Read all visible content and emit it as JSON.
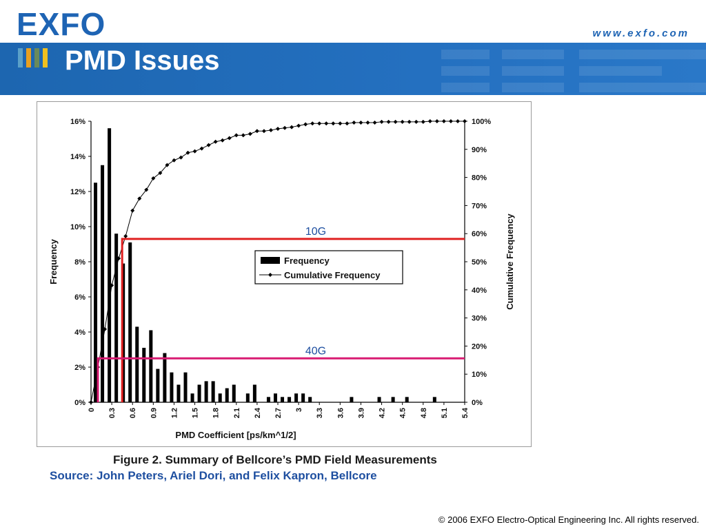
{
  "header": {
    "logo_text": "EXFO",
    "url": "www.exfo.com",
    "title": "PMD Issues",
    "title_bar_colors": [
      "#5aa0c8",
      "#e8a020",
      "#6a8a5a",
      "#f0c020"
    ],
    "brand_color": "#1e64b4"
  },
  "figure": {
    "caption": "Figure 2. Summary of Bellcore’s PMD Field Measurements",
    "source": "Source: John Peters, Ariel Dori, and Felix Kapron, Bellcore"
  },
  "footer": {
    "copyright": "© 2006 EXFO Electro-Optical Engineering Inc. All rights reserved."
  },
  "chart_data": {
    "type": "bar",
    "title": "",
    "xlabel": "PMD Coefficient [ps/km^1/2]",
    "ylabel": "Frequency",
    "y2label": "Cumulative Frequency",
    "ylim": [
      0,
      16
    ],
    "y2lim": [
      0,
      100
    ],
    "yticks": [
      "0%",
      "2%",
      "4%",
      "6%",
      "8%",
      "10%",
      "12%",
      "14%",
      "16%"
    ],
    "y2ticks": [
      "0%",
      "10%",
      "20%",
      "30%",
      "40%",
      "50%",
      "60%",
      "70%",
      "80%",
      "90%",
      "100%"
    ],
    "xticks": [
      "0",
      "0.3",
      "0.6",
      "0.9",
      "1.2",
      "1.5",
      "1.8",
      "2.1",
      "2.4",
      "2.7",
      "3",
      "3.3",
      "3.6",
      "3.9",
      "4.2",
      "4.5",
      "4.8",
      "5.1",
      "5.4"
    ],
    "x": [
      0.1,
      0.2,
      0.3,
      0.4,
      0.5,
      0.6,
      0.7,
      0.8,
      0.9,
      1.0,
      1.1,
      1.2,
      1.3,
      1.4,
      1.5,
      1.6,
      1.7,
      1.8,
      1.9,
      2.0,
      2.1,
      2.2,
      2.3,
      2.4,
      2.5,
      2.6,
      2.7,
      2.8,
      2.9,
      3.0,
      3.1,
      3.2,
      3.3,
      3.4,
      3.5,
      3.6,
      3.7,
      3.8,
      3.9,
      4.0,
      4.1,
      4.2,
      4.3,
      4.4,
      4.5,
      4.6,
      4.7,
      4.8,
      4.9,
      5.0,
      5.1,
      5.2,
      5.3,
      5.4
    ],
    "series": [
      {
        "name": "Frequency",
        "values": [
          12.5,
          13.5,
          15.6,
          9.6,
          7.9,
          9.1,
          4.3,
          3.1,
          4.1,
          1.9,
          2.8,
          1.7,
          1.0,
          1.7,
          0.5,
          1.0,
          1.2,
          1.2,
          0.5,
          0.8,
          1.0,
          0,
          0.5,
          1.0,
          0,
          0.3,
          0.5,
          0.3,
          0.3,
          0.5,
          0.5,
          0.3,
          0,
          0,
          0,
          0,
          0,
          0.3,
          0,
          0,
          0,
          0.3,
          0,
          0.3,
          0,
          0.3,
          0,
          0,
          0,
          0.3,
          0,
          0,
          0,
          0
        ]
      },
      {
        "name": "Cumulative Frequency",
        "x": [
          0,
          0.1,
          0.2,
          0.3,
          0.4,
          0.5,
          0.6,
          0.7,
          0.8,
          0.9,
          1.0,
          1.1,
          1.2,
          1.3,
          1.4,
          1.5,
          1.6,
          1.7,
          1.8,
          1.9,
          2.0,
          2.1,
          2.2,
          2.3,
          2.4,
          2.5,
          2.6,
          2.7,
          2.8,
          2.9,
          3.0,
          3.1,
          3.2,
          3.3,
          3.4,
          3.5,
          3.6,
          3.7,
          3.8,
          3.9,
          4.0,
          4.1,
          4.2,
          4.3,
          4.4,
          4.5,
          4.6,
          4.7,
          4.8,
          4.9,
          5.0,
          5.1,
          5.2,
          5.3,
          5.4
        ],
        "values": [
          0,
          12.5,
          26,
          41.6,
          51.2,
          59.1,
          68.2,
          72.5,
          75.6,
          79.7,
          81.6,
          84.4,
          86.1,
          87.1,
          88.8,
          89.3,
          90.3,
          91.5,
          92.7,
          93.2,
          94.0,
          95.0,
          95.0,
          95.5,
          96.5,
          96.5,
          96.8,
          97.3,
          97.6,
          97.9,
          98.4,
          98.9,
          99.2,
          99.2,
          99.2,
          99.2,
          99.2,
          99.2,
          99.5,
          99.5,
          99.5,
          99.5,
          99.8,
          99.8,
          99.8,
          99.8,
          99.8,
          99.8,
          99.8,
          100,
          100,
          100,
          100,
          100,
          100
        ]
      }
    ],
    "reference_lines": [
      {
        "label": "10G",
        "x": 0.45,
        "y": 9.3,
        "color": "#e02020"
      },
      {
        "label": "40G",
        "x": 0.1,
        "y": 2.5,
        "color": "#d81b72"
      }
    ],
    "legend": {
      "position": "center-right",
      "entries": [
        "Frequency",
        "Cumulative Frequency"
      ]
    },
    "grid": false
  }
}
